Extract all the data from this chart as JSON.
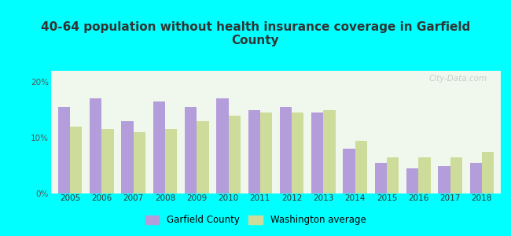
{
  "title": "40-64 population without health insurance coverage in Garfield\nCounty",
  "years": [
    2005,
    2006,
    2007,
    2008,
    2009,
    2010,
    2011,
    2012,
    2013,
    2014,
    2015,
    2016,
    2017,
    2018
  ],
  "garfield": [
    15.5,
    17.0,
    13.0,
    16.5,
    15.5,
    17.0,
    15.0,
    15.5,
    14.5,
    8.0,
    5.5,
    4.5,
    5.0,
    5.5
  ],
  "washington": [
    12.0,
    11.5,
    11.0,
    11.5,
    13.0,
    14.0,
    14.5,
    14.5,
    15.0,
    9.5,
    6.5,
    6.5,
    6.5,
    7.5
  ],
  "garfield_color": "#b39ddb",
  "washington_color": "#cddc9a",
  "background_color": "#00ffff",
  "plot_bg_top": "#eef7ee",
  "plot_bg_bottom": "#ffffff",
  "title_color": "#333333",
  "ylim": [
    0,
    22
  ],
  "yticks": [
    0,
    10,
    20
  ],
  "ytick_labels": [
    "0%",
    "10%",
    "20%"
  ],
  "bar_width": 0.38,
  "legend_garfield": "Garfield County",
  "legend_washington": "Washington average"
}
